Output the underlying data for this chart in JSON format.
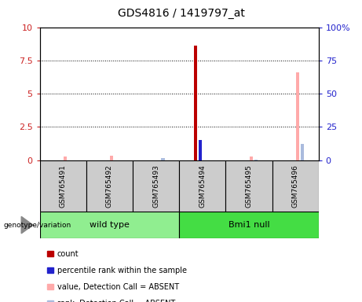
{
  "title": "GDS4816 / 1419797_at",
  "samples": [
    "GSM765491",
    "GSM765492",
    "GSM765493",
    "GSM765494",
    "GSM765495",
    "GSM765496"
  ],
  "groups": [
    {
      "name": "wild type",
      "samples": [
        0,
        1,
        2
      ],
      "color": "#90EE90"
    },
    {
      "name": "Bmi1 null",
      "samples": [
        3,
        4,
        5
      ],
      "color": "#44DD44"
    }
  ],
  "count_values": [
    0,
    0,
    0,
    8.6,
    0,
    0
  ],
  "percentile_values": [
    0,
    0,
    0,
    1.5,
    0,
    0
  ],
  "value_absent": [
    0.28,
    0.35,
    0.0,
    0.0,
    0.28,
    6.6
  ],
  "rank_absent": [
    0.0,
    0.0,
    0.15,
    0.0,
    0.05,
    1.2
  ],
  "ylim_left": [
    0,
    10
  ],
  "ylim_right": [
    0,
    100
  ],
  "yticks_left": [
    0,
    2.5,
    5.0,
    7.5,
    10
  ],
  "ytick_labels_left": [
    "0",
    "2.5",
    "5",
    "7.5",
    "10"
  ],
  "yticks_right": [
    0,
    25,
    50,
    75,
    100
  ],
  "ytick_labels_right": [
    "0",
    "25",
    "50",
    "75",
    "100%"
  ],
  "bar_width": 0.07,
  "bar_offsets": [
    -0.15,
    -0.05,
    0.05,
    0.15
  ],
  "colors": {
    "count": "#BB0000",
    "percentile": "#2222CC",
    "value_absent": "#FFAAAA",
    "rank_absent": "#AABBDD"
  },
  "legend": [
    {
      "label": "count",
      "color": "#BB0000"
    },
    {
      "label": "percentile rank within the sample",
      "color": "#2222CC"
    },
    {
      "label": "value, Detection Call = ABSENT",
      "color": "#FFAAAA"
    },
    {
      "label": "rank, Detection Call = ABSENT",
      "color": "#AABBDD"
    }
  ],
  "genotype_label": "genotype/variation",
  "axis_color_left": "#CC2222",
  "axis_color_right": "#2222CC",
  "sample_box_color": "#CCCCCC",
  "group_box_color_wt": "#90EE90",
  "group_box_color_bmi": "#44DD44"
}
